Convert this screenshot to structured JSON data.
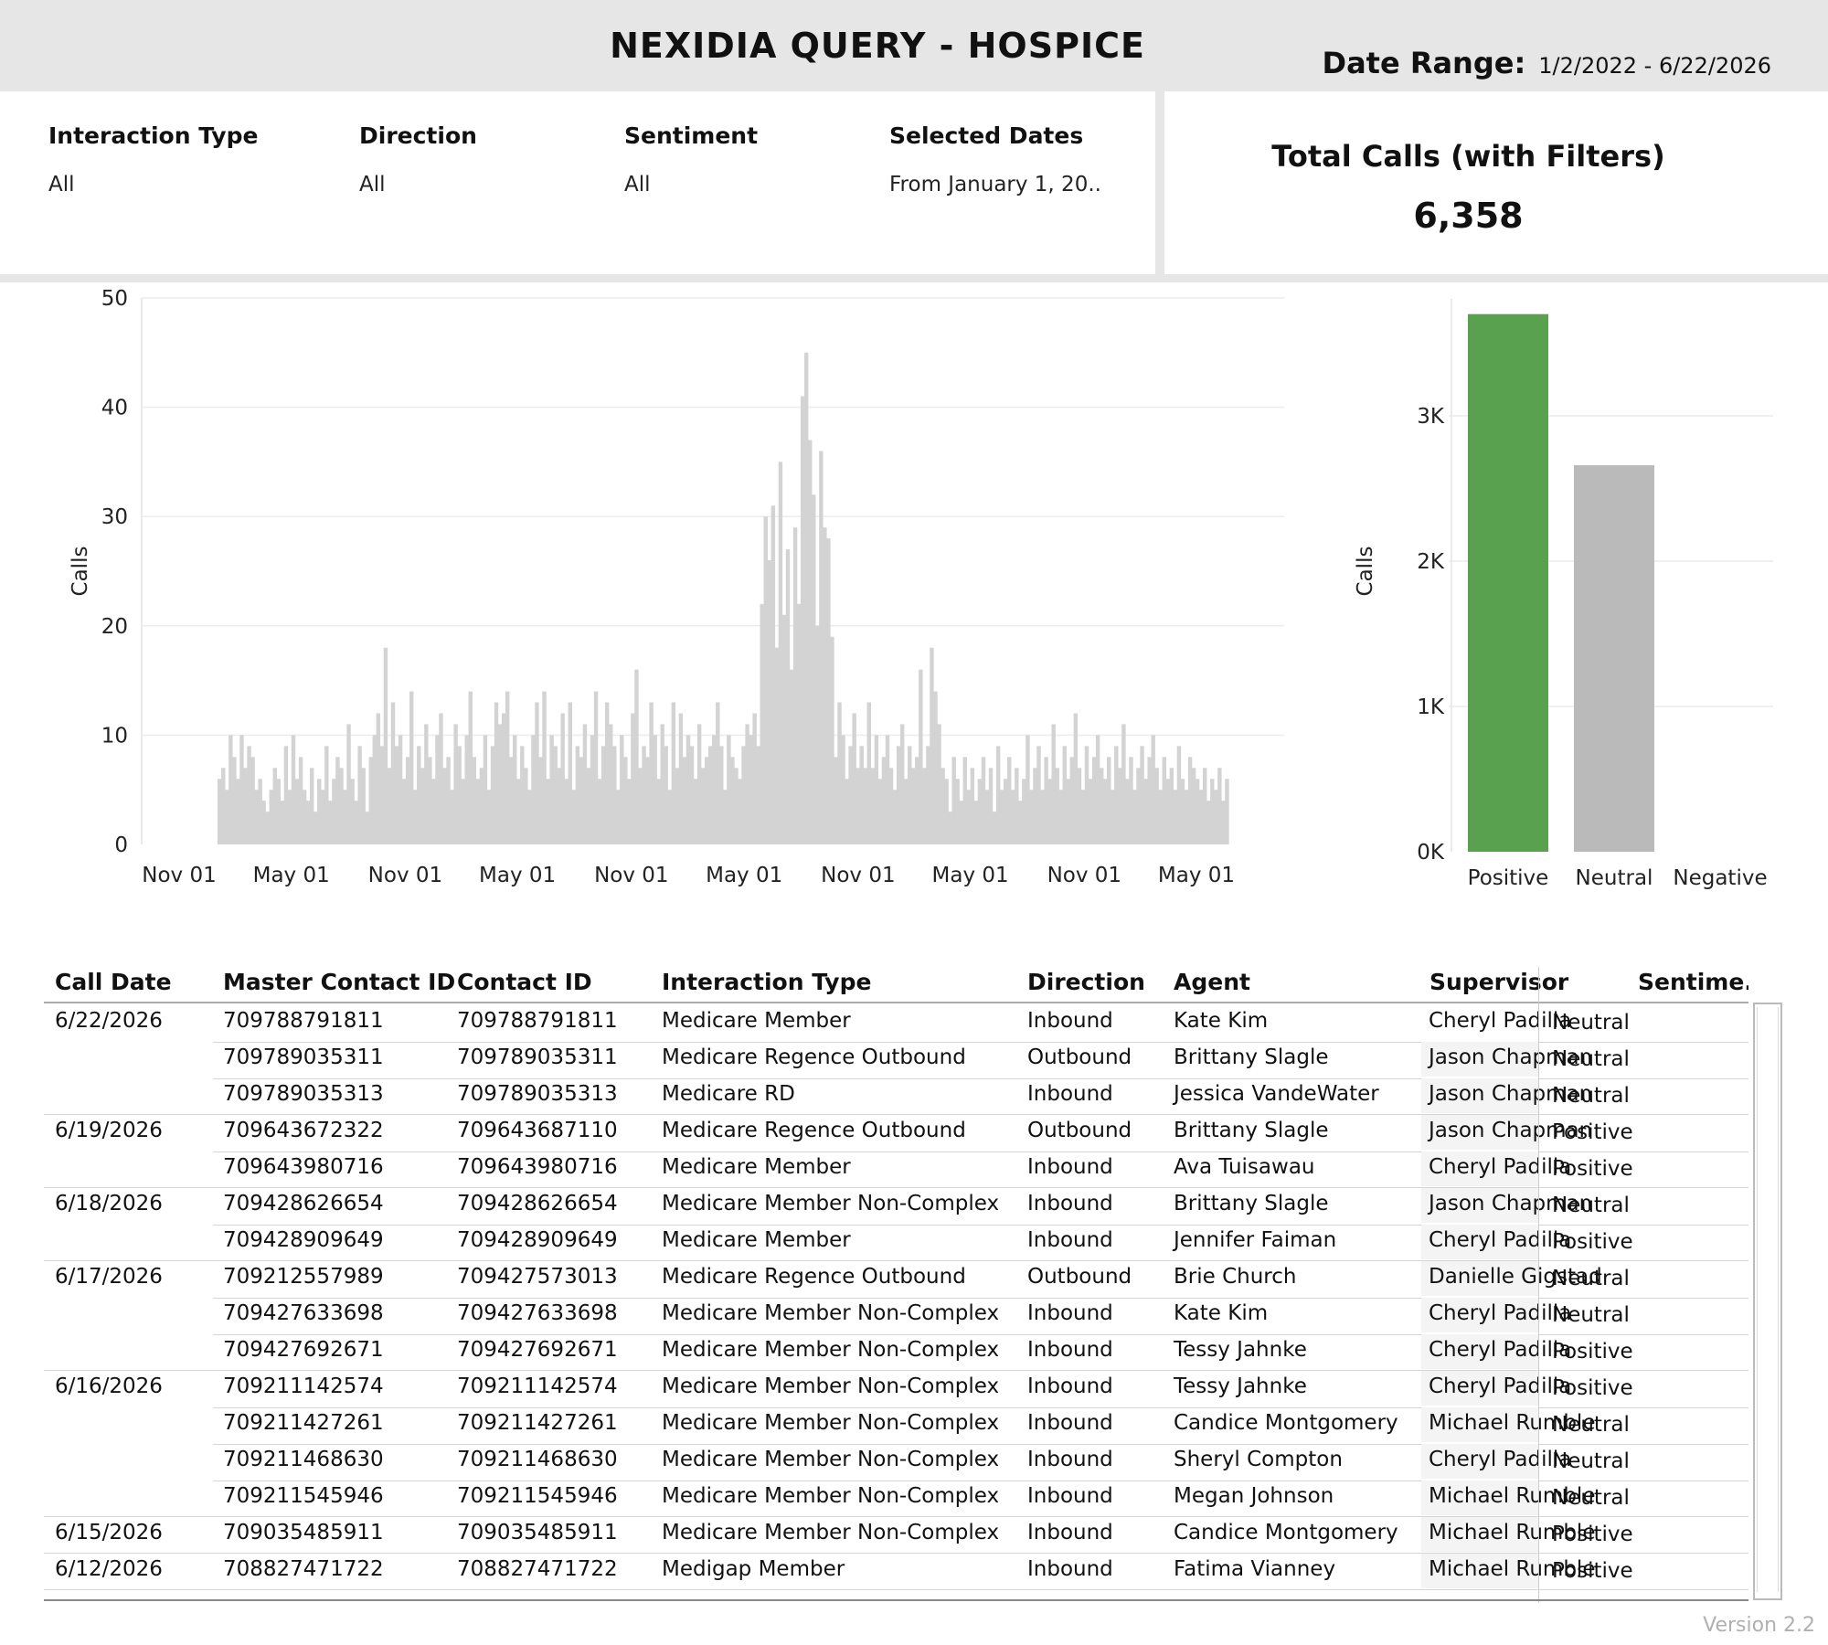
{
  "header": {
    "title": "NEXIDIA QUERY - HOSPICE",
    "date_range_label": "Date Range:",
    "date_range_value": "1/2/2022 - 6/22/2026"
  },
  "filters": [
    {
      "label": "Interaction Type",
      "value": "All"
    },
    {
      "label": "Direction",
      "value": "All"
    },
    {
      "label": "Sentiment",
      "value": "All"
    },
    {
      "label": "Selected Dates",
      "value": "From January 1, 20.."
    }
  ],
  "total": {
    "label": "Total Calls (with Filters)",
    "value": "6,358"
  },
  "colors": {
    "positive": "#59a14f",
    "neutral": "#bababa",
    "timeline_bars": "#d3d3d3",
    "header_bg": "#e6e6e6"
  },
  "chart_data": [
    {
      "type": "bar",
      "ylabel": "Calls",
      "ylim": [
        0,
        50
      ],
      "yticks": [
        0,
        10,
        20,
        30,
        40,
        50
      ],
      "x_tick_labels": [
        "Nov 01",
        "May 01",
        "Nov 01",
        "May 01",
        "Nov 01",
        "May 01",
        "Nov 01",
        "May 01",
        "Nov 01",
        "May 01"
      ],
      "x_ticks_dates": [
        "2021-11-01",
        "2022-05-01",
        "2022-11-01",
        "2023-05-01",
        "2023-11-01",
        "2024-05-01",
        "2024-11-01",
        "2025-05-01",
        "2025-11-01",
        "2026-05-01"
      ],
      "x_range": [
        "2022-01-02",
        "2026-06-22"
      ],
      "grid": true,
      "values": [
        6,
        7,
        5,
        10,
        8,
        6,
        10,
        7,
        9,
        8,
        5,
        6,
        4,
        3,
        5,
        7,
        6,
        4,
        9,
        5,
        10,
        6,
        8,
        5,
        4,
        7,
        3,
        6,
        5,
        9,
        4,
        6,
        8,
        7,
        5,
        11,
        6,
        4,
        9,
        7,
        3,
        8,
        10,
        12,
        9,
        18,
        7,
        13,
        9,
        10,
        6,
        8,
        14,
        5,
        9,
        7,
        11,
        8,
        6,
        10,
        12,
        7,
        8,
        5,
        11,
        9,
        6,
        10,
        14,
        8,
        6,
        7,
        10,
        5,
        9,
        13,
        11,
        12,
        14,
        8,
        10,
        6,
        9,
        7,
        5,
        10,
        13,
        8,
        14,
        6,
        10,
        9,
        7,
        12,
        6,
        13,
        5,
        9,
        8,
        11,
        7,
        10,
        14,
        6,
        9,
        13,
        11,
        9,
        5,
        10,
        8,
        6,
        12,
        16,
        7,
        9,
        8,
        13,
        10,
        6,
        11,
        9,
        5,
        13,
        7,
        12,
        8,
        10,
        9,
        6,
        11,
        7,
        8,
        9,
        10,
        13,
        9,
        5,
        10,
        8,
        7,
        6,
        9,
        11,
        10,
        12,
        9,
        22,
        30,
        26,
        31,
        18,
        35,
        21,
        27,
        16,
        29,
        22,
        41,
        45,
        37,
        32,
        20,
        36,
        29,
        28,
        19,
        8,
        13,
        10,
        6,
        9,
        12,
        7,
        9,
        7,
        13,
        7,
        10,
        6,
        8,
        10,
        7,
        5,
        9,
        11,
        6,
        9,
        7,
        8,
        16,
        7,
        9,
        18,
        14,
        11,
        7,
        6,
        3,
        8,
        6,
        4,
        8,
        5,
        7,
        4,
        6,
        8,
        5,
        7,
        3,
        9,
        5,
        6,
        8,
        5,
        7,
        4,
        6,
        10,
        5,
        7,
        9,
        5,
        8,
        6,
        11,
        7,
        5,
        9,
        6,
        8,
        12,
        7,
        5,
        9,
        6,
        8,
        10,
        7,
        6,
        8,
        5,
        9,
        7,
        11,
        6,
        8,
        5,
        7,
        9,
        6,
        8,
        10,
        7,
        5,
        8,
        6,
        7,
        5,
        9,
        6,
        5,
        8,
        7,
        6,
        5,
        7,
        4,
        6,
        5,
        7,
        4,
        6
      ]
    },
    {
      "type": "bar",
      "ylabel": "Calls",
      "ylim": [
        0,
        3900
      ],
      "y_tick_labels": [
        "0K",
        "1K",
        "2K",
        "3K"
      ],
      "y_tick_values": [
        0,
        1000,
        2000,
        3000
      ],
      "categories": [
        "Positive",
        "Neutral",
        "Negative"
      ],
      "values": [
        3700,
        2660,
        0
      ],
      "grid": true
    }
  ],
  "table": {
    "columns": [
      "Call Date",
      "Master Contact ID",
      "Contact ID",
      "Interaction Type",
      "Direction",
      "Agent",
      "Supervisor",
      "Sentime.."
    ],
    "rows": [
      {
        "date": "6/22/2026",
        "master": "709788791811",
        "contact": "709788791811",
        "type": "Medicare Member",
        "dir": "Inbound",
        "agent": "Kate Kim",
        "sup": "Cheryl Padilla",
        "sent": "Neutral"
      },
      {
        "date": "",
        "master": "709789035311",
        "contact": "709789035311",
        "type": "Medicare Regence Outbound",
        "dir": "Outbound",
        "agent": "Brittany Slagle",
        "sup": "Jason Chapman",
        "sent": "Neutral"
      },
      {
        "date": "",
        "master": "709789035313",
        "contact": "709789035313",
        "type": "Medicare RD",
        "dir": "Inbound",
        "agent": "Jessica VandeWater",
        "sup": "Jason Chapman",
        "sent": "Neutral"
      },
      {
        "date": "6/19/2026",
        "master": "709643672322",
        "contact": "709643687110",
        "type": "Medicare Regence Outbound",
        "dir": "Outbound",
        "agent": "Brittany Slagle",
        "sup": "Jason Chapman",
        "sent": "Positive"
      },
      {
        "date": "",
        "master": "709643980716",
        "contact": "709643980716",
        "type": "Medicare Member",
        "dir": "Inbound",
        "agent": "Ava Tuisawau",
        "sup": "Cheryl Padilla",
        "sent": "Positive"
      },
      {
        "date": "6/18/2026",
        "master": "709428626654",
        "contact": "709428626654",
        "type": "Medicare Member Non-Complex",
        "dir": "Inbound",
        "agent": "Brittany Slagle",
        "sup": "Jason Chapman",
        "sent": "Neutral"
      },
      {
        "date": "",
        "master": "709428909649",
        "contact": "709428909649",
        "type": "Medicare Member",
        "dir": "Inbound",
        "agent": "Jennifer Faiman",
        "sup": "Cheryl Padilla",
        "sent": "Positive"
      },
      {
        "date": "6/17/2026",
        "master": "709212557989",
        "contact": "709427573013",
        "type": "Medicare Regence Outbound",
        "dir": "Outbound",
        "agent": "Brie Church",
        "sup": "Danielle Gigstad",
        "sent": "Neutral"
      },
      {
        "date": "",
        "master": "709427633698",
        "contact": "709427633698",
        "type": "Medicare Member Non-Complex",
        "dir": "Inbound",
        "agent": "Kate Kim",
        "sup": "Cheryl Padilla",
        "sent": "Neutral"
      },
      {
        "date": "",
        "master": "709427692671",
        "contact": "709427692671",
        "type": "Medicare Member Non-Complex",
        "dir": "Inbound",
        "agent": "Tessy Jahnke",
        "sup": "Cheryl Padilla",
        "sent": "Positive"
      },
      {
        "date": "6/16/2026",
        "master": "709211142574",
        "contact": "709211142574",
        "type": "Medicare Member Non-Complex",
        "dir": "Inbound",
        "agent": "Tessy Jahnke",
        "sup": "Cheryl Padilla",
        "sent": "Positive"
      },
      {
        "date": "",
        "master": "709211427261",
        "contact": "709211427261",
        "type": "Medicare Member Non-Complex",
        "dir": "Inbound",
        "agent": "Candice Montgomery",
        "sup": "Michael Rumble",
        "sent": "Neutral"
      },
      {
        "date": "",
        "master": "709211468630",
        "contact": "709211468630",
        "type": "Medicare Member Non-Complex",
        "dir": "Inbound",
        "agent": "Sheryl Compton",
        "sup": "Cheryl Padilla",
        "sent": "Neutral"
      },
      {
        "date": "",
        "master": "709211545946",
        "contact": "709211545946",
        "type": "Medicare Member Non-Complex",
        "dir": "Inbound",
        "agent": "Megan Johnson",
        "sup": "Michael Rumble",
        "sent": "Neutral"
      },
      {
        "date": "6/15/2026",
        "master": "709035485911",
        "contact": "709035485911",
        "type": "Medicare Member Non-Complex",
        "dir": "Inbound",
        "agent": "Candice Montgomery",
        "sup": "Michael Rumble",
        "sent": "Positive"
      },
      {
        "date": "6/12/2026",
        "master": "708827471722",
        "contact": "708827471722",
        "type": "Medigap Member",
        "dir": "Inbound",
        "agent": "Fatima Vianney",
        "sup": "Michael Rumble",
        "sent": "Positive"
      }
    ]
  },
  "footer": {
    "version": "Version 2.2"
  }
}
